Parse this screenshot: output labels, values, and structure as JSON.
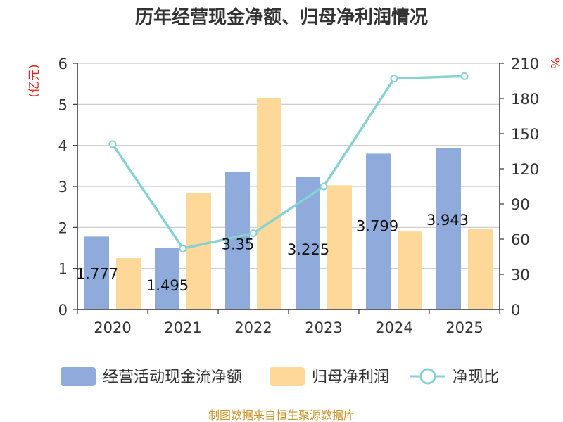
{
  "chart_data": {
    "type": "bar",
    "title": "历年经营现金净额、归母净利润情况",
    "categories": [
      "2020",
      "2021",
      "2022",
      "2023",
      "2024",
      "2025"
    ],
    "series": [
      {
        "name": "经营活动现金流净额",
        "type": "bar",
        "axis": "left",
        "color": "#8eabdb",
        "values": [
          1.777,
          1.495,
          3.35,
          3.225,
          3.799,
          3.943
        ],
        "data_labels": [
          "1.777",
          "1.495",
          "3.35",
          "3.225",
          "3.799",
          "3.943"
        ]
      },
      {
        "name": "归母净利润",
        "type": "bar",
        "axis": "left",
        "color": "#fdd899",
        "values": [
          1.25,
          2.83,
          5.15,
          3.03,
          1.9,
          1.97
        ]
      },
      {
        "name": "净现比",
        "type": "line",
        "axis": "right",
        "color": "#86d2d4",
        "values": [
          141,
          52,
          65,
          105,
          197,
          199
        ]
      }
    ],
    "y_left": {
      "unit": "(亿元)",
      "min": 0,
      "max": 6,
      "ticks": [
        "0",
        "1",
        "2",
        "3",
        "4",
        "5",
        "6"
      ]
    },
    "y_right": {
      "unit": "%",
      "min": 0,
      "max": 210,
      "ticks": [
        "0",
        "30",
        "60",
        "90",
        "120",
        "150",
        "180",
        "210"
      ]
    },
    "grid": true,
    "legend_position": "bottom",
    "source": "制图数据来自恒生聚源数据库"
  }
}
